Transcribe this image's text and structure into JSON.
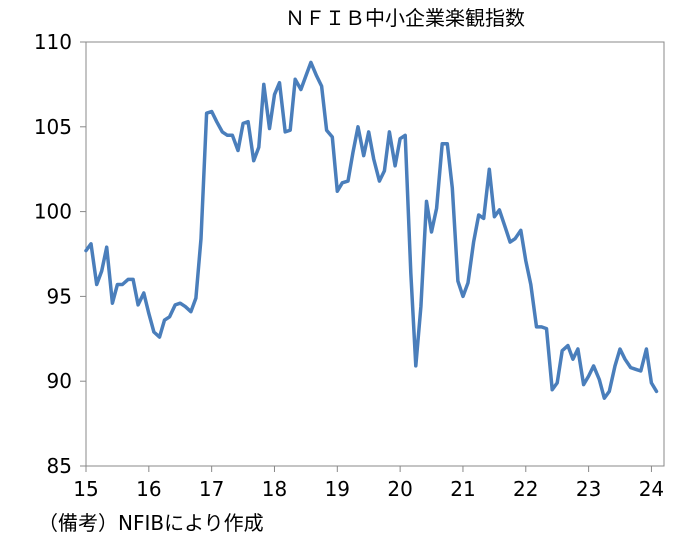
{
  "chart_data": {
    "type": "line",
    "title": "ＮＦＩＢ中小企業楽観指数",
    "xlabel": "",
    "ylabel": "",
    "ylim": [
      85,
      110
    ],
    "yticks": [
      85,
      90,
      95,
      100,
      105,
      110
    ],
    "xlim": [
      15,
      24.2
    ],
    "xticks": [
      "15",
      "16",
      "17",
      "18",
      "19",
      "20",
      "21",
      "22",
      "23",
      "24"
    ],
    "grid": false,
    "legend": "none",
    "line_color": "#4a7ebb",
    "series": [
      {
        "x": [
          15.0,
          15.08,
          15.17,
          15.25,
          15.33,
          15.42,
          15.5,
          15.58,
          15.67,
          15.75,
          15.83,
          15.92,
          16.0,
          16.08,
          16.17,
          16.25,
          16.33,
          16.42,
          16.5,
          16.58,
          16.67,
          16.75,
          16.83,
          16.92,
          17.0,
          17.08,
          17.17,
          17.25,
          17.33,
          17.42,
          17.5,
          17.58,
          17.67,
          17.75,
          17.83,
          17.92,
          18.0,
          18.08,
          18.17,
          18.25,
          18.33,
          18.42,
          18.5,
          18.58,
          18.67,
          18.75,
          18.83,
          18.92,
          19.0,
          19.08,
          19.17,
          19.25,
          19.33,
          19.42,
          19.5,
          19.58,
          19.67,
          19.75,
          19.83,
          19.92,
          20.0,
          20.08,
          20.17,
          20.25,
          20.33,
          20.42,
          20.5,
          20.58,
          20.67,
          20.75,
          20.83,
          20.92,
          21.0,
          21.08,
          21.17,
          21.25,
          21.33,
          21.42,
          21.5,
          21.58,
          21.67,
          21.75,
          21.83,
          21.92,
          22.0,
          22.08,
          22.17,
          22.25,
          22.33,
          22.42,
          22.5,
          22.58,
          22.67,
          22.75,
          22.83,
          22.92,
          23.0,
          23.08,
          23.17,
          23.25,
          23.33,
          23.42,
          23.5,
          23.58,
          23.67,
          23.75,
          23.83,
          23.92,
          24.0,
          24.08
        ],
        "y": [
          97.7,
          98.1,
          95.7,
          96.5,
          97.9,
          94.6,
          95.7,
          95.7,
          96.0,
          96.0,
          94.5,
          95.2,
          94.0,
          92.9,
          92.6,
          93.6,
          93.8,
          94.5,
          94.6,
          94.4,
          94.1,
          94.9,
          98.4,
          105.8,
          105.9,
          105.3,
          104.7,
          104.5,
          104.5,
          103.6,
          105.2,
          105.3,
          103.0,
          103.8,
          107.5,
          104.9,
          106.9,
          107.6,
          104.7,
          104.8,
          107.8,
          107.2,
          108.0,
          108.8,
          108.0,
          107.4,
          104.8,
          104.4,
          101.2,
          101.7,
          101.8,
          103.5,
          105.0,
          103.3,
          104.7,
          103.1,
          101.8,
          102.4,
          104.7,
          102.7,
          104.3,
          104.5,
          96.4,
          90.9,
          94.4,
          100.6,
          98.8,
          100.2,
          104.0,
          104.0,
          101.4,
          95.9,
          95.0,
          95.8,
          98.2,
          99.8,
          99.6,
          102.5,
          99.7,
          100.1,
          99.1,
          98.2,
          98.4,
          98.9,
          97.1,
          95.7,
          93.2,
          93.2,
          93.1,
          89.5,
          89.9,
          91.8,
          92.1,
          91.3,
          91.9,
          89.8,
          90.3,
          90.9,
          90.1,
          89.0,
          89.4,
          90.9,
          91.9,
          91.3,
          90.8,
          90.7,
          90.6,
          91.9,
          89.9,
          89.4
        ]
      }
    ]
  },
  "note": "（備考）NFIBにより作成"
}
